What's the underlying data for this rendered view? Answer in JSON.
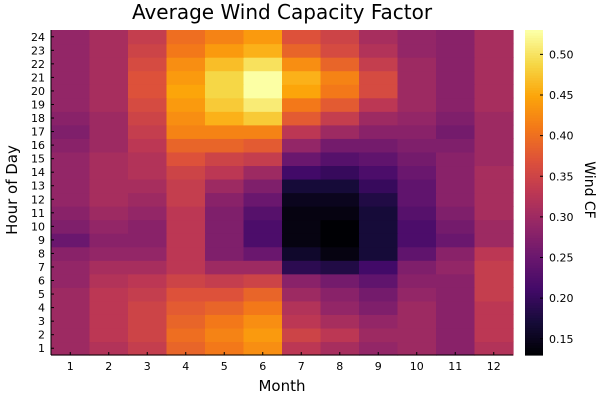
{
  "chart_data": {
    "type": "heatmap",
    "title": "Average Wind Capacity Factor",
    "xlabel": "Month",
    "ylabel": "Hour of Day",
    "colorbar_label": "Wind CF",
    "colormap": "inferno",
    "x": [
      1,
      2,
      3,
      4,
      5,
      6,
      7,
      8,
      9,
      10,
      11,
      12
    ],
    "y": [
      1,
      2,
      3,
      4,
      5,
      6,
      7,
      8,
      9,
      10,
      11,
      12,
      13,
      14,
      15,
      16,
      17,
      18,
      19,
      20,
      21,
      22,
      23,
      24
    ],
    "clim": [
      0.13,
      0.53
    ],
    "colorbar_ticks": [
      "0.15",
      "0.20",
      "0.25",
      "0.30",
      "0.35",
      "0.40",
      "0.45",
      "0.50"
    ],
    "colorbar_tick_values": [
      0.15,
      0.2,
      0.25,
      0.3,
      0.35,
      0.4,
      0.45,
      0.5
    ],
    "z_by_hour": [
      [
        0.3,
        0.32,
        0.34,
        0.39,
        0.41,
        0.43,
        0.33,
        0.31,
        0.29,
        0.3,
        0.28,
        0.32
      ],
      [
        0.3,
        0.33,
        0.35,
        0.4,
        0.42,
        0.44,
        0.35,
        0.33,
        0.3,
        0.3,
        0.28,
        0.33
      ],
      [
        0.3,
        0.33,
        0.35,
        0.39,
        0.41,
        0.43,
        0.33,
        0.31,
        0.29,
        0.3,
        0.28,
        0.33
      ],
      [
        0.3,
        0.33,
        0.35,
        0.38,
        0.39,
        0.41,
        0.32,
        0.29,
        0.27,
        0.3,
        0.28,
        0.33
      ],
      [
        0.3,
        0.33,
        0.34,
        0.37,
        0.37,
        0.39,
        0.3,
        0.28,
        0.26,
        0.29,
        0.28,
        0.34
      ],
      [
        0.29,
        0.32,
        0.33,
        0.35,
        0.34,
        0.35,
        0.28,
        0.26,
        0.24,
        0.28,
        0.28,
        0.34
      ],
      [
        0.29,
        0.31,
        0.31,
        0.33,
        0.3,
        0.3,
        0.19,
        0.18,
        0.21,
        0.27,
        0.29,
        0.34
      ],
      [
        0.28,
        0.29,
        0.29,
        0.33,
        0.27,
        0.25,
        0.16,
        0.14,
        0.17,
        0.24,
        0.28,
        0.33
      ],
      [
        0.25,
        0.28,
        0.28,
        0.33,
        0.27,
        0.22,
        0.14,
        0.13,
        0.17,
        0.22,
        0.25,
        0.3
      ],
      [
        0.27,
        0.29,
        0.28,
        0.33,
        0.27,
        0.22,
        0.14,
        0.13,
        0.17,
        0.22,
        0.26,
        0.3
      ],
      [
        0.28,
        0.3,
        0.29,
        0.33,
        0.27,
        0.23,
        0.14,
        0.14,
        0.17,
        0.23,
        0.27,
        0.31
      ],
      [
        0.29,
        0.31,
        0.3,
        0.34,
        0.28,
        0.25,
        0.15,
        0.15,
        0.18,
        0.24,
        0.28,
        0.31
      ],
      [
        0.29,
        0.31,
        0.31,
        0.34,
        0.3,
        0.27,
        0.17,
        0.17,
        0.2,
        0.24,
        0.28,
        0.31
      ],
      [
        0.29,
        0.31,
        0.32,
        0.35,
        0.33,
        0.3,
        0.21,
        0.2,
        0.22,
        0.25,
        0.28,
        0.31
      ],
      [
        0.29,
        0.31,
        0.32,
        0.37,
        0.35,
        0.34,
        0.25,
        0.23,
        0.24,
        0.26,
        0.28,
        0.3
      ],
      [
        0.28,
        0.3,
        0.33,
        0.39,
        0.39,
        0.38,
        0.29,
        0.26,
        0.26,
        0.27,
        0.27,
        0.3
      ],
      [
        0.27,
        0.3,
        0.34,
        0.42,
        0.42,
        0.42,
        0.33,
        0.3,
        0.28,
        0.28,
        0.26,
        0.3
      ],
      [
        0.28,
        0.3,
        0.35,
        0.43,
        0.46,
        0.48,
        0.38,
        0.34,
        0.3,
        0.29,
        0.27,
        0.3
      ],
      [
        0.29,
        0.31,
        0.36,
        0.44,
        0.48,
        0.51,
        0.41,
        0.38,
        0.33,
        0.3,
        0.28,
        0.31
      ],
      [
        0.29,
        0.31,
        0.37,
        0.45,
        0.49,
        0.53,
        0.45,
        0.41,
        0.36,
        0.3,
        0.28,
        0.31
      ],
      [
        0.29,
        0.31,
        0.37,
        0.44,
        0.49,
        0.53,
        0.46,
        0.42,
        0.36,
        0.3,
        0.28,
        0.31
      ],
      [
        0.29,
        0.31,
        0.36,
        0.43,
        0.47,
        0.5,
        0.43,
        0.39,
        0.34,
        0.3,
        0.28,
        0.31
      ],
      [
        0.29,
        0.31,
        0.35,
        0.41,
        0.44,
        0.46,
        0.39,
        0.36,
        0.32,
        0.29,
        0.28,
        0.31
      ],
      [
        0.29,
        0.31,
        0.34,
        0.4,
        0.42,
        0.44,
        0.37,
        0.35,
        0.31,
        0.29,
        0.28,
        0.31
      ]
    ]
  }
}
